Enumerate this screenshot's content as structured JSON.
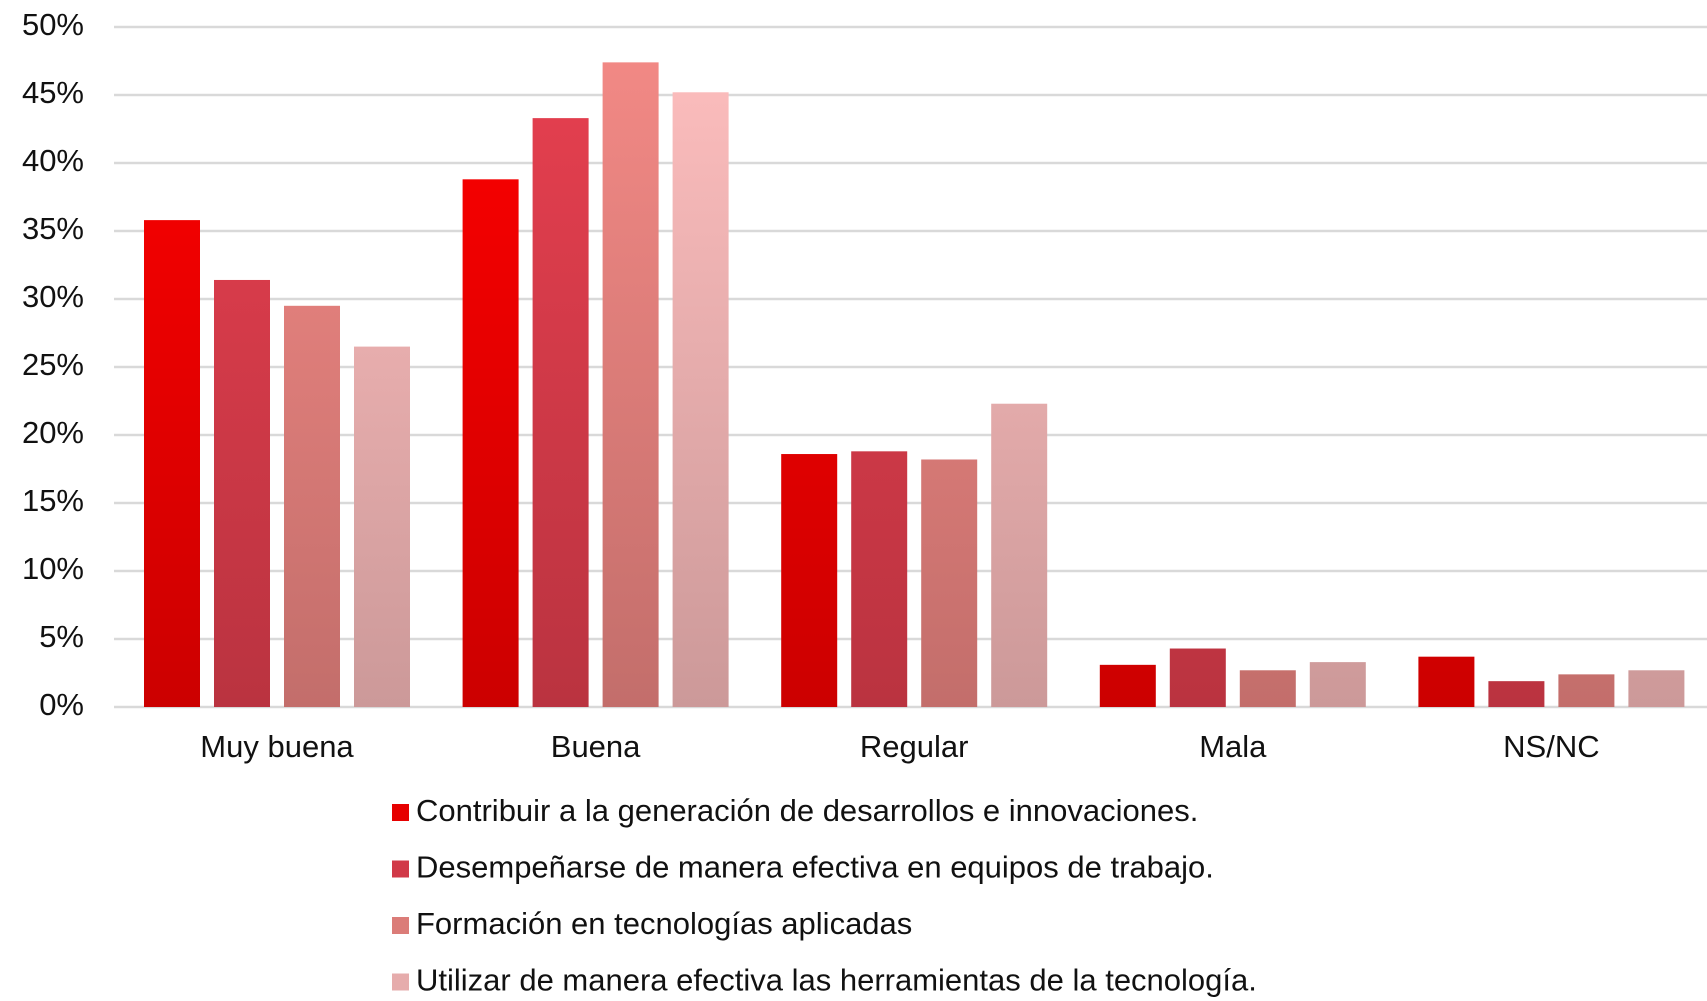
{
  "chart_data": {
    "type": "bar",
    "categories": [
      "Muy buena",
      "Buena",
      "Regular",
      "Mala",
      "NS/NC"
    ],
    "series": [
      {
        "name": "Contribuir a la generación de desarrollos e innovaciones.",
        "color": "#ff0000",
        "values": [
          35.8,
          38.8,
          18.6,
          3.1,
          3.7
        ]
      },
      {
        "name": "Desempeñarse de manera efectiva en equipos de trabajo.",
        "color": "#e84050",
        "values": [
          31.4,
          43.3,
          18.8,
          4.3,
          1.9
        ]
      },
      {
        "name": "Formación en tecnologías aplicadas",
        "color": "#f48a86",
        "values": [
          29.5,
          47.4,
          18.2,
          2.7,
          2.4
        ]
      },
      {
        "name": "Utilizar de manera efectiva las herramientas de la tecnología.",
        "color": "#ffbfbf",
        "values": [
          26.5,
          45.2,
          22.3,
          3.3,
          2.7
        ]
      }
    ],
    "ylim": [
      0,
      50
    ],
    "yticks": [
      {
        "value": 0,
        "label": "0%"
      },
      {
        "value": 5,
        "label": "5%"
      },
      {
        "value": 10,
        "label": "10%"
      },
      {
        "value": 15,
        "label": "15%"
      },
      {
        "value": 20,
        "label": "20%"
      },
      {
        "value": 25,
        "label": "25%"
      },
      {
        "value": 30,
        "label": "30%"
      },
      {
        "value": 35,
        "label": "35%"
      },
      {
        "value": 40,
        "label": "40%"
      },
      {
        "value": 45,
        "label": "45%"
      },
      {
        "value": 50,
        "label": "50%"
      }
    ],
    "grid": true,
    "legend": "bottom"
  }
}
